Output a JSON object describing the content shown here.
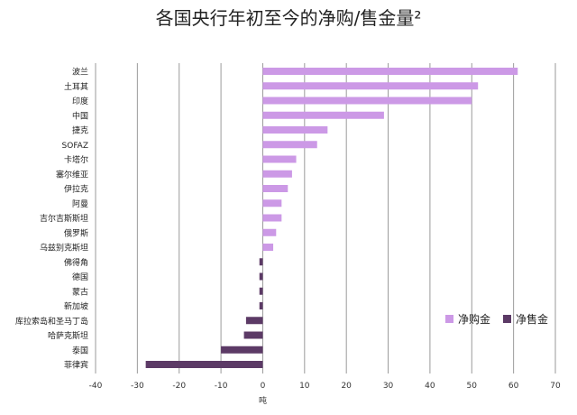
{
  "chart_data": {
    "type": "bar",
    "orientation": "horizontal",
    "title": "各国央行年初至今的净购/售金量²",
    "xlabel": "吨",
    "xlim": [
      -40,
      70
    ],
    "xticks": [
      -40,
      -30,
      -20,
      -10,
      0,
      10,
      20,
      30,
      40,
      50,
      60,
      70
    ],
    "grid": true,
    "legend_position": "right",
    "categories": [
      "波兰",
      "土耳其",
      "印度",
      "中国",
      "捷克",
      "SOFAZ",
      "卡塔尔",
      "塞尔维亚",
      "伊拉克",
      "阿曼",
      "吉尔吉斯斯坦",
      "俄罗斯",
      "乌兹别克斯坦",
      "佛得角",
      "德国",
      "蒙古",
      "新加坡",
      "库拉索岛和圣马丁岛",
      "哈萨克斯坦",
      "泰国",
      "菲律宾"
    ],
    "values": [
      61,
      51.5,
      50,
      29,
      15.5,
      13,
      8,
      7,
      6,
      4.5,
      4.5,
      3.2,
      2.5,
      -0.8,
      -0.8,
      -0.8,
      -0.8,
      -4,
      -4.5,
      -10,
      -28
    ],
    "series": [
      {
        "name": "净购金",
        "color": "#cc99e6"
      },
      {
        "name": "净售金",
        "color": "#5c3a66"
      }
    ]
  }
}
